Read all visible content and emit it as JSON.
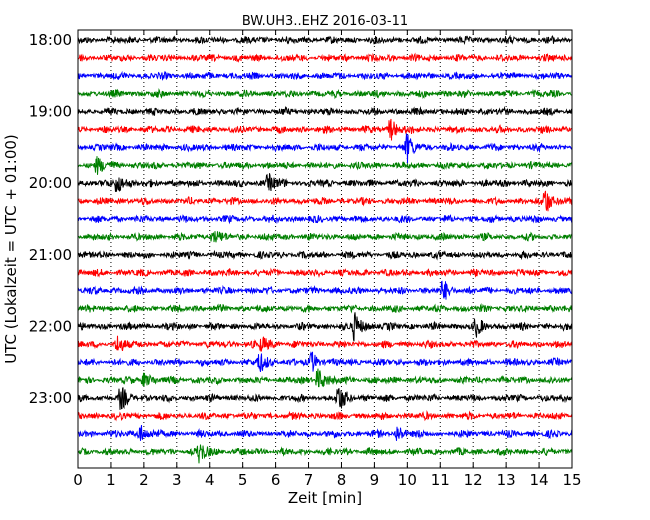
{
  "chart_data": {
    "type": "line",
    "title": "BW.UH3..EHZ 2016-03-11",
    "xlabel": "Zeit  [min]",
    "ylabel": "UTC (Lokalzeit = UTC + 01:00)",
    "xlim": [
      0,
      15
    ],
    "x_ticks": [
      0,
      1,
      2,
      3,
      4,
      5,
      6,
      7,
      8,
      9,
      10,
      11,
      12,
      13,
      14,
      15
    ],
    "y_tick_labels": [
      "18:00",
      "19:00",
      "20:00",
      "21:00",
      "22:00",
      "23:00"
    ],
    "grid": "vertical dotted",
    "trace_colors": [
      "#000000",
      "#ff0000",
      "#0000ff",
      "#008000"
    ],
    "traces_per_hour": 4,
    "trace_start_times": [
      "18:00",
      "18:15",
      "18:30",
      "18:45",
      "19:00",
      "19:15",
      "19:30",
      "19:45",
      "20:00",
      "20:15",
      "20:30",
      "20:45",
      "21:00",
      "21:15",
      "21:30",
      "21:45",
      "22:00",
      "22:15",
      "22:30",
      "22:45",
      "23:00",
      "23:15",
      "23:30",
      "23:45"
    ],
    "events": [
      {
        "trace": 5,
        "minute": 9.5,
        "amp": 1.2
      },
      {
        "trace": 6,
        "minute": 10.0,
        "amp": 1.4
      },
      {
        "trace": 7,
        "minute": 0.6,
        "amp": 0.9
      },
      {
        "trace": 8,
        "minute": 1.2,
        "amp": 1.2
      },
      {
        "trace": 8,
        "minute": 5.8,
        "amp": 0.9
      },
      {
        "trace": 9,
        "minute": 14.2,
        "amp": 1.5
      },
      {
        "trace": 11,
        "minute": 4.1,
        "amp": 0.7
      },
      {
        "trace": 14,
        "minute": 11.1,
        "amp": 1.0
      },
      {
        "trace": 16,
        "minute": 8.4,
        "amp": 1.6
      },
      {
        "trace": 16,
        "minute": 12.1,
        "amp": 0.8
      },
      {
        "trace": 17,
        "minute": 1.2,
        "amp": 0.8
      },
      {
        "trace": 17,
        "minute": 5.6,
        "amp": 0.8
      },
      {
        "trace": 18,
        "minute": 5.5,
        "amp": 1.1
      },
      {
        "trace": 18,
        "minute": 7.1,
        "amp": 1.0
      },
      {
        "trace": 19,
        "minute": 7.3,
        "amp": 1.3
      },
      {
        "trace": 19,
        "minute": 2.0,
        "amp": 0.8
      },
      {
        "trace": 20,
        "minute": 1.3,
        "amp": 1.1
      },
      {
        "trace": 20,
        "minute": 7.9,
        "amp": 1.5
      },
      {
        "trace": 22,
        "minute": 1.9,
        "amp": 1.0
      },
      {
        "trace": 22,
        "minute": 9.7,
        "amp": 0.9
      },
      {
        "trace": 23,
        "minute": 3.7,
        "amp": 1.1
      }
    ]
  }
}
